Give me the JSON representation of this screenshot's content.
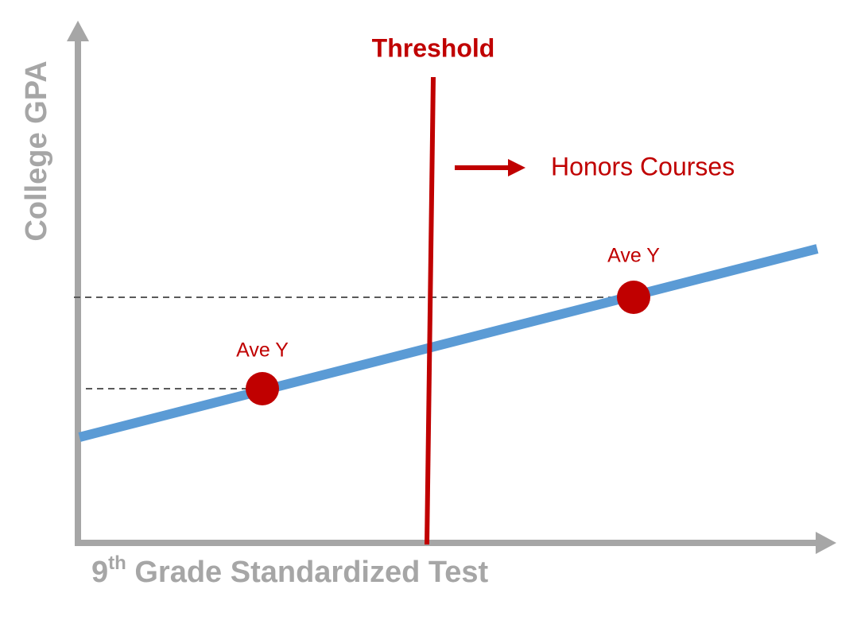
{
  "y_axis_label": "College GPA",
  "x_axis_label": {
    "parts": [
      "9",
      "th",
      " Grade Standardized Test"
    ]
  },
  "threshold_label": "Threshold",
  "honors_label": "Honors Courses",
  "points": [
    {
      "label": "Ave Y"
    },
    {
      "label": "Ave Y"
    }
  ]
}
